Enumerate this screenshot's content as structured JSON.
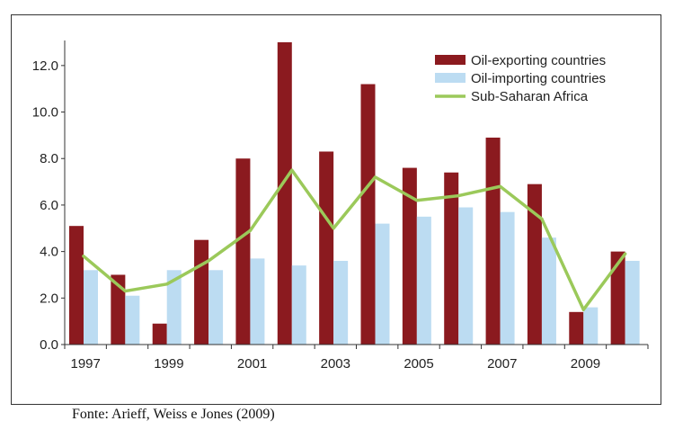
{
  "source_note": "Fonte: Arieff, Weiss e Jones (2009)",
  "chart_data": {
    "type": "bar",
    "title": "",
    "xlabel": "",
    "ylabel": "",
    "x": [
      1997,
      1998,
      1999,
      2000,
      2001,
      2002,
      2003,
      2004,
      2005,
      2006,
      2007,
      2008,
      2009,
      2010
    ],
    "x_tick_labels": [
      "1997",
      "1999",
      "2001",
      "2003",
      "2005",
      "2007",
      "2009"
    ],
    "x_tick_values": [
      1997,
      1999,
      2001,
      2003,
      2005,
      2007,
      2009
    ],
    "ylim": [
      0,
      13
    ],
    "y_ticks": [
      0,
      2,
      4,
      6,
      8,
      10,
      12
    ],
    "y_tick_labels": [
      "0.0",
      "2.0",
      "4.0",
      "6.0",
      "8.0",
      "10.0",
      "12.0"
    ],
    "grid": false,
    "legend_position": "top-right",
    "series": [
      {
        "name": "Oil-exporting countries",
        "kind": "bar",
        "color": "#8b1a1f",
        "values": [
          5.1,
          3.0,
          0.9,
          4.5,
          8.0,
          13.0,
          8.3,
          11.2,
          7.6,
          7.4,
          8.9,
          6.9,
          1.4,
          4.0
        ]
      },
      {
        "name": "Oil-importing countries",
        "kind": "bar",
        "color": "#bcdcf2",
        "values": [
          3.2,
          2.1,
          3.2,
          3.2,
          3.7,
          3.4,
          3.6,
          5.2,
          5.5,
          5.9,
          5.7,
          4.6,
          1.6,
          3.6
        ]
      },
      {
        "name": "Sub-Saharan Africa",
        "kind": "line",
        "color": "#9bc95a",
        "values": [
          3.8,
          2.3,
          2.6,
          3.6,
          4.9,
          7.5,
          5.0,
          7.2,
          6.2,
          6.4,
          6.8,
          5.4,
          1.5,
          3.9
        ]
      }
    ]
  }
}
